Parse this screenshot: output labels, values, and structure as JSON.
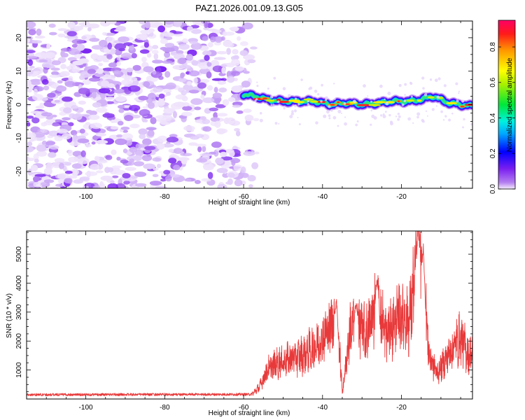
{
  "title": "PAZ1.2026.001.09.13.G05",
  "chart_data": [
    {
      "type": "heatmap",
      "name": "spectrogram",
      "xlabel": "Height of straight line (km)",
      "ylabel": "Frequency (Hz)",
      "xlim": [
        -115,
        -2
      ],
      "ylim": [
        -25,
        25
      ],
      "x_ticks": [
        -100,
        -80,
        -60,
        -40,
        -20
      ],
      "y_ticks": [
        -20,
        -10,
        0,
        10,
        20
      ],
      "noise_region_x": [
        -115,
        -57
      ],
      "ridge": [
        {
          "x": -60,
          "y": 3.0
        },
        {
          "x": -57,
          "y": 2.5
        },
        {
          "x": -54,
          "y": 1.5
        },
        {
          "x": -50,
          "y": 1.0
        },
        {
          "x": -46,
          "y": 1.0
        },
        {
          "x": -42,
          "y": 1.0
        },
        {
          "x": -38,
          "y": 0.0
        },
        {
          "x": -34,
          "y": 0.5
        },
        {
          "x": -30,
          "y": 0.0
        },
        {
          "x": -26,
          "y": 0.5
        },
        {
          "x": -22,
          "y": 1.0
        },
        {
          "x": -18,
          "y": 1.0
        },
        {
          "x": -15,
          "y": 1.5
        },
        {
          "x": -12,
          "y": 2.5
        },
        {
          "x": -8,
          "y": 0.5
        },
        {
          "x": -5,
          "y": 0.0
        },
        {
          "x": -2,
          "y": -0.5
        }
      ],
      "colorbar": {
        "label": "Normalized spectral amplitude",
        "range": [
          0,
          0.95
        ],
        "ticks": [
          "0.0",
          "0.2",
          "0.4",
          "0.6",
          "0.8"
        ]
      }
    },
    {
      "type": "line",
      "name": "snr",
      "xlabel": "Height of straight line (km)",
      "ylabel": "SNR (10 * v/v)",
      "xlim": [
        -115,
        -2
      ],
      "ylim": [
        0,
        5800
      ],
      "x_ticks": [
        -100,
        -80,
        -60,
        -40,
        -20
      ],
      "y_ticks": [
        1000,
        2000,
        3000,
        4000,
        5000
      ],
      "color": "#e8393a",
      "series_envelope": [
        {
          "x": -115,
          "y": 150
        },
        {
          "x": -58,
          "y": 160
        },
        {
          "x": -56,
          "y": 400
        },
        {
          "x": -54,
          "y": 1000
        },
        {
          "x": -52,
          "y": 1200
        },
        {
          "x": -48,
          "y": 1400
        },
        {
          "x": -45,
          "y": 1500
        },
        {
          "x": -42,
          "y": 1800
        },
        {
          "x": -39,
          "y": 2300
        },
        {
          "x": -37,
          "y": 2800
        },
        {
          "x": -35.5,
          "y": 1400
        },
        {
          "x": -35,
          "y": 200
        },
        {
          "x": -33,
          "y": 2400
        },
        {
          "x": -31,
          "y": 2600
        },
        {
          "x": -29,
          "y": 2200
        },
        {
          "x": -27,
          "y": 3000
        },
        {
          "x": -26,
          "y": 3400
        },
        {
          "x": -24,
          "y": 2200
        },
        {
          "x": -22,
          "y": 2600
        },
        {
          "x": -20,
          "y": 2900
        },
        {
          "x": -18,
          "y": 2700
        },
        {
          "x": -16.5,
          "y": 4200
        },
        {
          "x": -15.5,
          "y": 5100
        },
        {
          "x": -14,
          "y": 3300
        },
        {
          "x": -13,
          "y": 1500
        },
        {
          "x": -11,
          "y": 900
        },
        {
          "x": -9,
          "y": 1300
        },
        {
          "x": -7,
          "y": 1800
        },
        {
          "x": -5,
          "y": 2100
        },
        {
          "x": -3,
          "y": 1500
        },
        {
          "x": -2,
          "y": 1600
        }
      ],
      "peaks": [
        {
          "x": -36.5,
          "y": 3700
        },
        {
          "x": -31.5,
          "y": 3500
        },
        {
          "x": -26.2,
          "y": 4200
        },
        {
          "x": -15.8,
          "y": 5750
        },
        {
          "x": -14.5,
          "y": 5300
        }
      ]
    }
  ]
}
